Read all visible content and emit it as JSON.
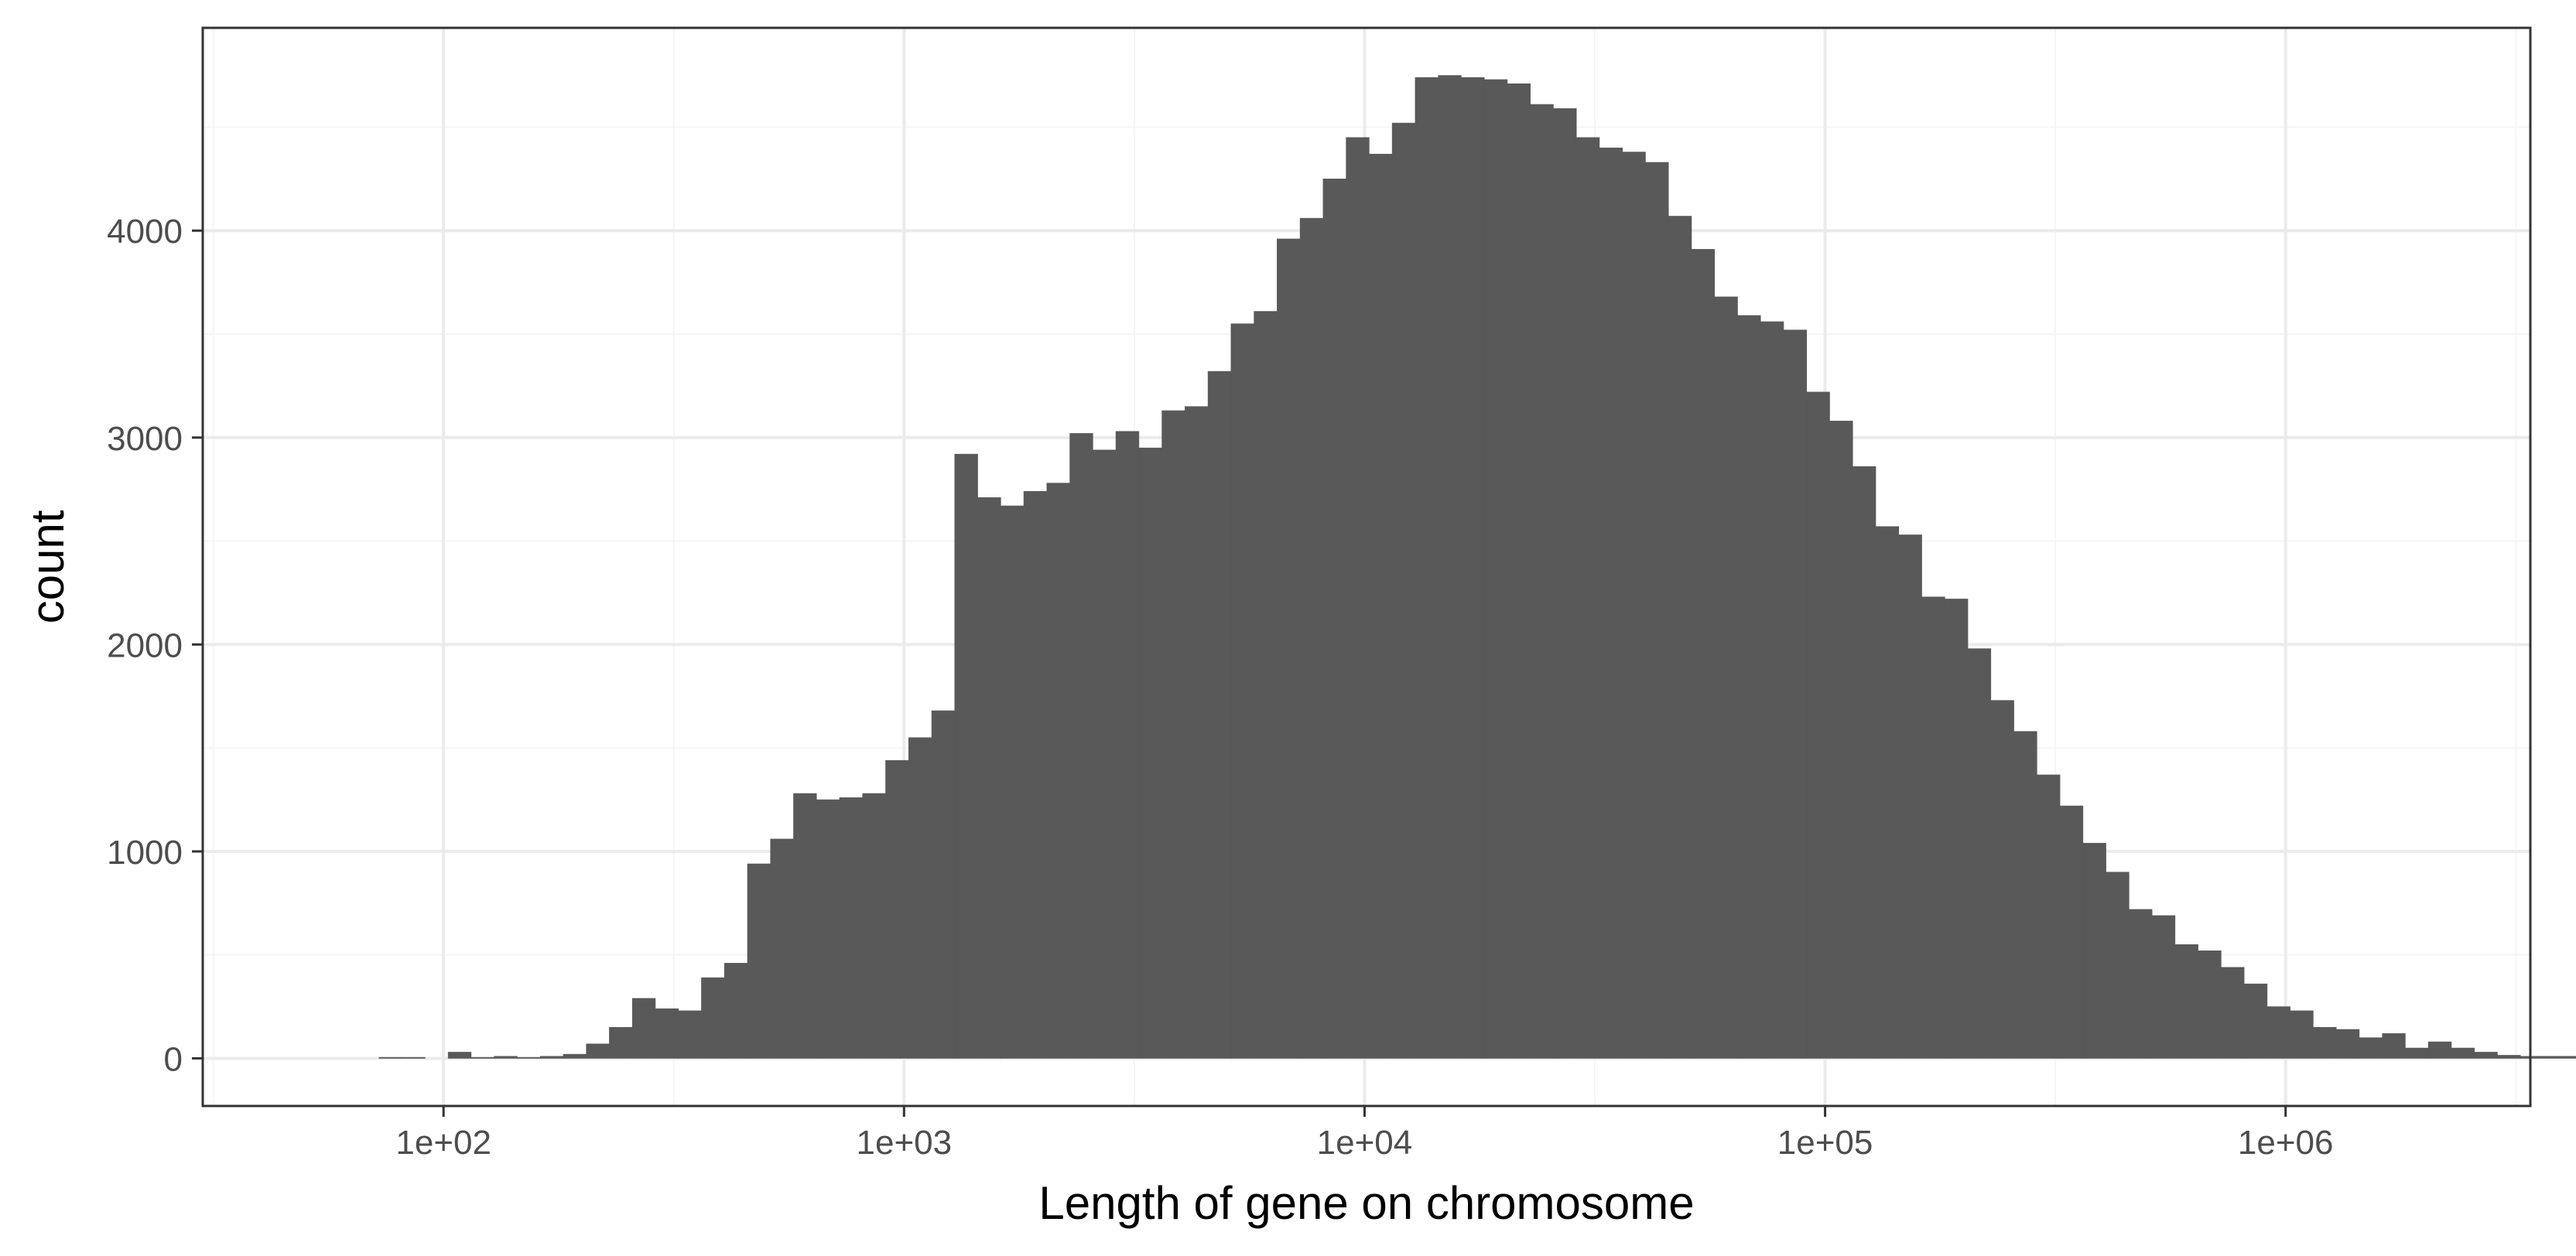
{
  "chart_data": {
    "type": "bar",
    "subtype": "histogram",
    "x_scale": "log10",
    "xlabel": "Length of gene on chromosome",
    "ylabel": "count",
    "xlim": [
      30,
      3400000
    ],
    "ylim": [
      -230,
      4980
    ],
    "x_ticks": [
      {
        "value": 100,
        "label": "1e+02"
      },
      {
        "value": 1000,
        "label": "1e+03"
      },
      {
        "value": 10000,
        "label": "1e+04"
      },
      {
        "value": 100000,
        "label": "1e+05"
      },
      {
        "value": 1000000,
        "label": "1e+06"
      }
    ],
    "y_ticks": [
      {
        "value": 0,
        "label": "0"
      },
      {
        "value": 1000,
        "label": "1000"
      },
      {
        "value": 2000,
        "label": "2000"
      },
      {
        "value": 3000,
        "label": "3000"
      },
      {
        "value": 4000,
        "label": "4000"
      }
    ],
    "bin_log10_start": 1.51,
    "bin_log10_width": 0.05,
    "values": [
      0,
      0,
      0,
      0,
      0,
      0,
      0,
      5,
      5,
      0,
      30,
      5,
      10,
      5,
      10,
      20,
      70,
      150,
      290,
      240,
      230,
      390,
      460,
      940,
      1060,
      1280,
      1250,
      1260,
      1280,
      1440,
      1550,
      1680,
      2920,
      2710,
      2670,
      2740,
      2780,
      3020,
      2940,
      3030,
      2950,
      3130,
      3150,
      3320,
      3550,
      3610,
      3960,
      4060,
      4250,
      4450,
      4370,
      4520,
      4740,
      4750,
      4740,
      4730,
      4710,
      4610,
      4590,
      4450,
      4400,
      4380,
      4330,
      4070,
      3910,
      3680,
      3590,
      3560,
      3520,
      3220,
      3080,
      2860,
      2570,
      2530,
      2230,
      2220,
      1980,
      1730,
      1580,
      1370,
      1220,
      1040,
      900,
      720,
      690,
      550,
      520,
      440,
      360,
      250,
      230,
      150,
      140,
      100,
      120,
      50,
      80,
      50,
      30,
      15,
      10,
      10,
      10,
      5
    ],
    "bar_color": "#595959",
    "panel_border": "#333333",
    "grid": true,
    "grid_major_color": "#ebebeb",
    "grid_minor_color": "#f5f5f5"
  }
}
